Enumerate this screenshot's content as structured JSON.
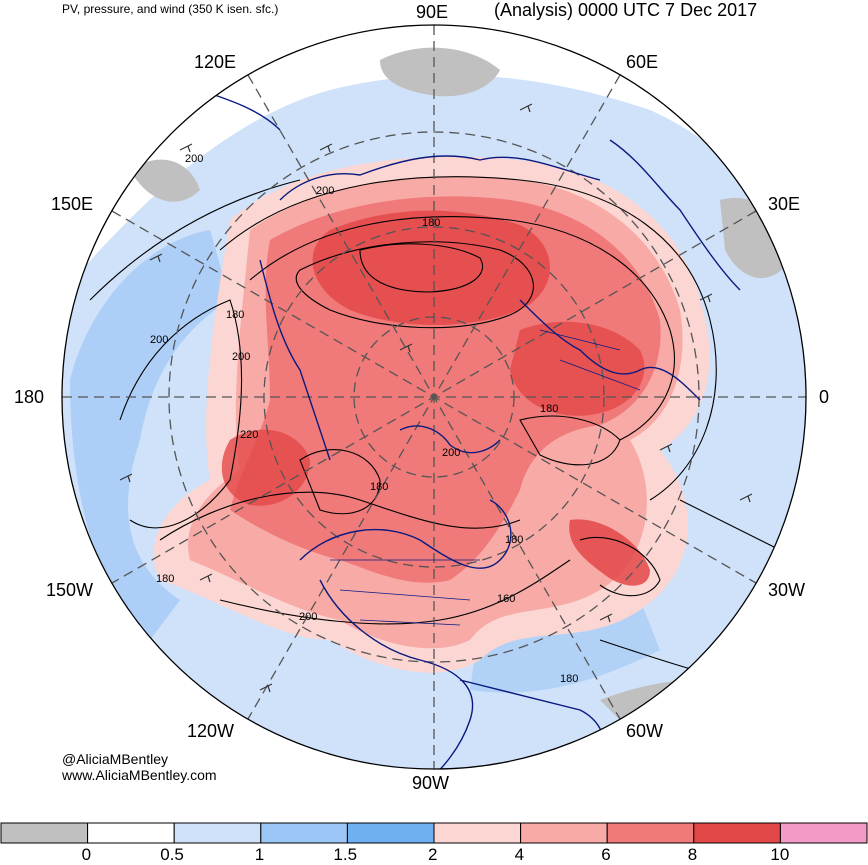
{
  "header": {
    "left_title": "PV, pressure, and wind (350 K isen. sfc.)",
    "right_title": "(Analysis) 0000 UTC 7 Dec 2017"
  },
  "map": {
    "projection": "north-polar-stereographic",
    "longitude_labels": [
      "90E",
      "60E",
      "30E",
      "0",
      "30W",
      "60W",
      "90W",
      "120W",
      "150W",
      "180",
      "150E",
      "120E"
    ],
    "contour_labels": [
      "200",
      "200",
      "180",
      "180",
      "200",
      "200",
      "220",
      "180",
      "200",
      "180",
      "180",
      "160",
      "180",
      "200",
      "180"
    ]
  },
  "credits": {
    "handle": "@AliciaMBentley",
    "website": "www.AliciaMBentley.com"
  },
  "colorbar": {
    "colors": [
      "#c0c0c0",
      "#ffffff",
      "#cfe2fa",
      "#9cc6f5",
      "#6fb0f0",
      "#fbd6d3",
      "#f7aaa6",
      "#f07979",
      "#e34848",
      "#f49ac6"
    ],
    "tick_labels": [
      "0",
      "0.5",
      "1",
      "1.5",
      "2",
      "4",
      "6",
      "8",
      "10"
    ]
  }
}
